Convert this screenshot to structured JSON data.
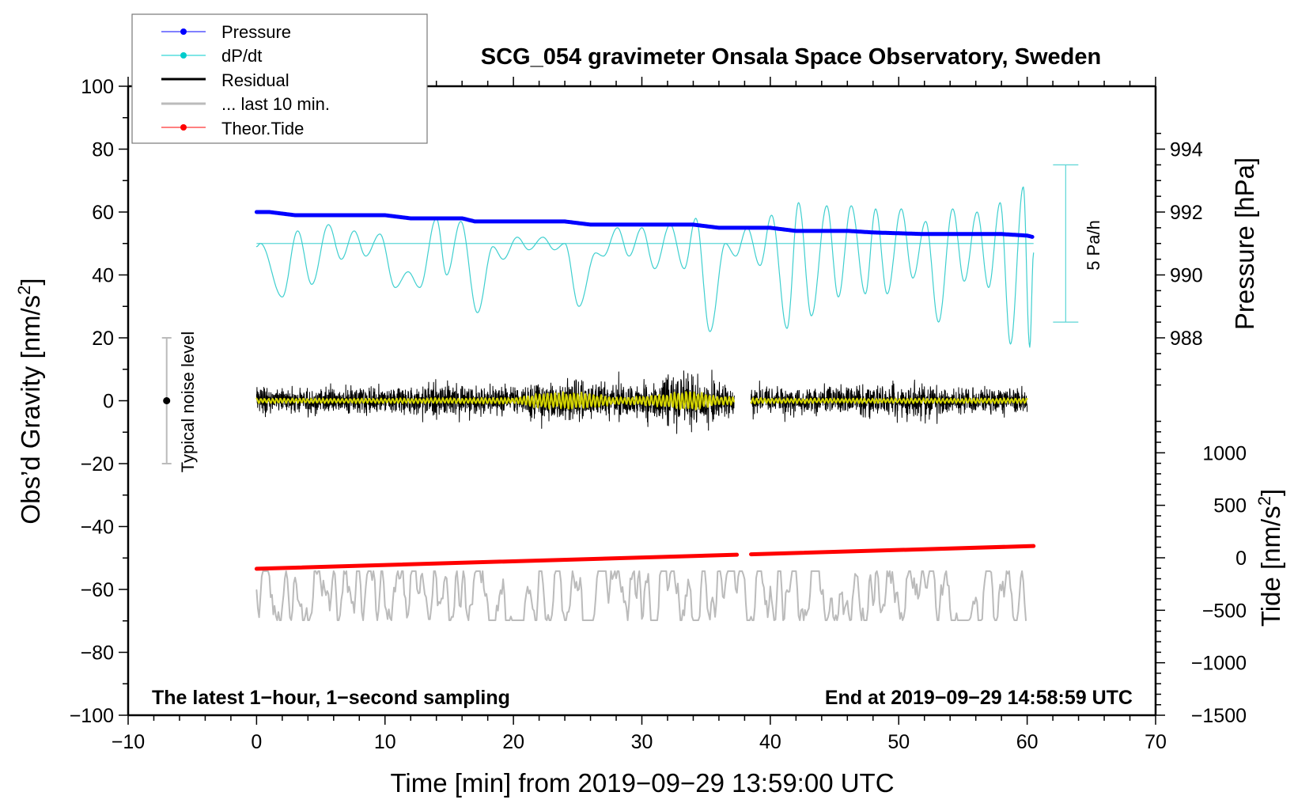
{
  "chart_data": {
    "type": "line",
    "title": "SCG_054 gravimeter Onsala Space Observatory, Sweden",
    "xlabel": "Time [min] from 2019−09−29 13:59:00 UTC",
    "ylabel_left": "Obs’d Gravity [nm/s",
    "ylabel_left_sup": "2",
    "ylabel_left_end": "]",
    "ylabel_right_pressure": "Pressure [hPa]",
    "ylabel_right_tide": "Tide [nm/s",
    "ylabel_right_tide_sup": "2",
    "ylabel_right_tide_end": "]",
    "xlim": [
      -10,
      70
    ],
    "ylim_left": [
      -100,
      100
    ],
    "pressure_axis": {
      "ticks": [
        988,
        990,
        992,
        994
      ],
      "minor_step": 0.5,
      "range": [
        986.5,
        994.9
      ]
    },
    "tide_axis": {
      "ticks": [
        -1500,
        -1000,
        -500,
        0,
        500,
        1000
      ],
      "minor_step": 100
    },
    "x_ticks": [
      -10,
      0,
      10,
      20,
      30,
      40,
      50,
      60,
      70
    ],
    "y_ticks": [
      -100,
      -80,
      -60,
      -40,
      -20,
      0,
      20,
      40,
      60,
      80,
      100
    ],
    "x_tick_labels": [
      "−10",
      "0",
      "10",
      "20",
      "30",
      "40",
      "50",
      "60",
      "70"
    ],
    "y_tick_labels": [
      "−100",
      "−80",
      "−60",
      "−40",
      "−20",
      "0",
      "20",
      "40",
      "60",
      "80",
      "100"
    ],
    "pressure_tick_labels": [
      "988",
      "990",
      "992",
      "994"
    ],
    "tide_tick_labels": [
      "−1500",
      "−1000",
      "−500",
      "0",
      "500",
      "1000"
    ],
    "grid": false,
    "legend_placement": "top-left",
    "legend": [
      {
        "label": "Pressure",
        "color": "#0000ff",
        "style": "line-dot"
      },
      {
        "label": "dP/dt",
        "color": "#00cccc",
        "style": "line-dot"
      },
      {
        "label": "Residual",
        "color": "#000000",
        "style": "line"
      },
      {
        "label": "... last 10 min.",
        "color": "#bbbbbb",
        "style": "line"
      },
      {
        "label": "Theor.Tide",
        "color": "#ff0000",
        "style": "line-dot"
      }
    ],
    "annotations": {
      "bottom_left": "The latest 1−hour, 1−second sampling",
      "bottom_right": "End at 2019−09−29 14:58:59 UTC",
      "noise_label": "Typical noise level",
      "noise_range": [
        -20,
        20
      ],
      "noise_at_x": -7,
      "scale_label": "5 Pa/h",
      "scale_range_gravity": [
        25,
        75
      ]
    },
    "series": [
      {
        "name": "Pressure",
        "unit": "hPa",
        "color": "#0000ff",
        "x": [
          0,
          1,
          2,
          3,
          6,
          9,
          10,
          12,
          16,
          17,
          24,
          26,
          30,
          34,
          35,
          36,
          40,
          41,
          42,
          46,
          48,
          52,
          54,
          58,
          60,
          60.5
        ],
        "y": [
          992.0,
          992.0,
          991.95,
          991.9,
          991.9,
          991.9,
          991.9,
          991.8,
          991.8,
          991.7,
          991.7,
          991.6,
          991.6,
          991.6,
          991.55,
          991.5,
          991.5,
          991.45,
          991.4,
          991.4,
          991.35,
          991.3,
          991.3,
          991.3,
          991.25,
          991.2
        ]
      },
      {
        "name": "dP/dt",
        "unit": "Pa/h",
        "color": "#00cccc",
        "baseline_gravity": 50,
        "gravity_per_pa_h": 10,
        "x": [
          0,
          0.3,
          2.0,
          3.2,
          4.3,
          5.6,
          6.6,
          7.6,
          8.5,
          9.6,
          10.8,
          11.8,
          12.7,
          14.0,
          14.8,
          15.9,
          17.2,
          18.4,
          19.2,
          20.3,
          21.2,
          22.3,
          23.2,
          24.0,
          25.1,
          26.4,
          27.0,
          28.1,
          29.0,
          30.0,
          31.0,
          32.2,
          33.3,
          34.2,
          35.3,
          36.5,
          37.3,
          38.2,
          39.2,
          40.1,
          41.3,
          42.2,
          43.2,
          44.4,
          45.3,
          46.3,
          47.4,
          48.2,
          49.1,
          50.2,
          51.1,
          52.1,
          53.1,
          54.2,
          55.1,
          56.1,
          57.0,
          57.9,
          58.7,
          59.7,
          60.2,
          60.5
        ],
        "y": [
          -0.1,
          0.0,
          -1.7,
          0.4,
          -1.3,
          0.6,
          -0.5,
          0.4,
          -0.4,
          0.3,
          -1.4,
          -0.9,
          -1.4,
          0.8,
          -1.0,
          0.7,
          -2.2,
          -0.1,
          -0.5,
          0.2,
          -0.2,
          0.2,
          -0.2,
          0.0,
          -2.0,
          -0.3,
          -0.4,
          0.5,
          -0.4,
          0.5,
          -0.8,
          0.6,
          -0.8,
          0.8,
          -2.8,
          0.0,
          -0.4,
          0.5,
          -0.7,
          0.9,
          -2.7,
          1.3,
          -2.3,
          1.2,
          -1.7,
          1.2,
          -1.6,
          1.1,
          -1.6,
          1.1,
          -1.1,
          0.7,
          -2.5,
          1.1,
          -1.2,
          1.0,
          -1.4,
          1.3,
          -3.2,
          1.8,
          -3.3,
          -0.3
        ]
      },
      {
        "name": "Residual",
        "unit": "nm/s2",
        "color": "#000000",
        "sampling_s": 1,
        "gap_min": [
          37.2,
          38.5
        ],
        "envelope_x": [
          0,
          5,
          10,
          15,
          20,
          22,
          25,
          28,
          30,
          32,
          34,
          36,
          37,
          40,
          45,
          50,
          55,
          60
        ],
        "envelope_amp": [
          4,
          4,
          4,
          5,
          4,
          6,
          6,
          5,
          6,
          7,
          8,
          6,
          4,
          4,
          4,
          5,
          4,
          4
        ]
      },
      {
        "name": "Residual (filtered)",
        "unit": "nm/s2",
        "color": "#cccc00",
        "envelope_x": [
          0,
          10,
          20,
          22,
          25,
          28,
          30,
          32,
          34,
          36,
          40,
          50,
          60
        ],
        "envelope_amp": [
          0.8,
          0.8,
          1.0,
          2.5,
          3.0,
          1.2,
          1.5,
          2.5,
          3.5,
          1.5,
          0.8,
          0.8,
          0.8
        ]
      },
      {
        "name": "... last 10 min.",
        "unit": "nm/s2",
        "color": "#bbbbbb",
        "center": -62,
        "amplitude": 6
      },
      {
        "name": "Theor.Tide",
        "unit": "nm/s2",
        "color": "#ff0000",
        "gap_min": [
          37.4,
          38.5
        ],
        "x": [
          0,
          60.5
        ],
        "y": [
          -105,
          112
        ]
      }
    ]
  }
}
